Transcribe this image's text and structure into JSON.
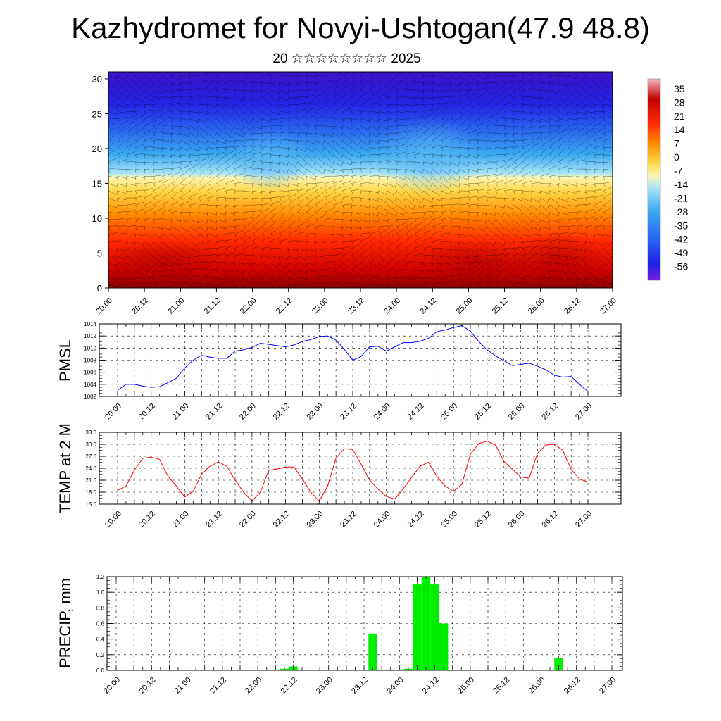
{
  "title": "Kazhydromet for Novyi-Ushtogan(47.9 48.8)",
  "subtitle": "20 ☆☆☆☆☆☆☆☆ 2025",
  "colors": {
    "pmsl_line": "#0000ff",
    "temp_line": "#ff0000",
    "precip_bar": "#00ee00"
  },
  "chart_data": [
    {
      "type": "heatmap",
      "x_ticks": [
        "20.00",
        "20.12",
        "21.00",
        "21.12",
        "22.00",
        "22.12",
        "23.00",
        "23.12",
        "24.00",
        "24.12",
        "25.00",
        "25.12",
        "26.00",
        "26.12",
        "27.00"
      ],
      "y_ticks": [
        "0",
        "5",
        "10",
        "15",
        "20",
        "25",
        "30"
      ],
      "ylim": [
        0,
        31
      ],
      "colorbar": {
        "labels": [
          "35",
          "28",
          "21",
          "14",
          "7",
          "0",
          "-7",
          "-14",
          "-21",
          "-28",
          "-35",
          "-42",
          "-49",
          "-56"
        ],
        "range": [
          -63,
          40
        ]
      },
      "overlay": "wind barbs"
    },
    {
      "type": "line",
      "ylabel": "PMSL",
      "x_ticks": [
        "20.00",
        "20.12",
        "21.00",
        "21.12",
        "22.00",
        "22.12",
        "23.00",
        "23.12",
        "24.00",
        "24.12",
        "25.00",
        "25.12",
        "26.00",
        "26.12",
        "27.00"
      ],
      "y_ticks": [
        "1002",
        "1004",
        "1006",
        "1008",
        "1010",
        "1012",
        "1014"
      ],
      "ylim": [
        1002,
        1014
      ],
      "values": [
        1003.0,
        1004.0,
        1004.0,
        1003.7,
        1003.5,
        1003.6,
        1004.3,
        1005.0,
        1006.7,
        1008.0,
        1008.8,
        1008.5,
        1008.3,
        1008.3,
        1009.5,
        1009.7,
        1010.1,
        1010.8,
        1010.6,
        1010.4,
        1010.2,
        1010.5,
        1011.1,
        1011.4,
        1011.9,
        1012.0,
        1011.3,
        1009.8,
        1008.0,
        1008.6,
        1010.2,
        1010.3,
        1009.5,
        1010.2,
        1010.9,
        1010.9,
        1011.1,
        1011.6,
        1012.7,
        1013.0,
        1013.4,
        1013.7,
        1012.8,
        1011.1,
        1009.7,
        1008.7,
        1007.9,
        1007.1,
        1007.3,
        1007.5,
        1007.0,
        1006.4,
        1005.5,
        1005.2,
        1005.3,
        1004.0,
        1002.8
      ],
      "grid": true
    },
    {
      "type": "line",
      "ylabel": "TEMP at 2 M",
      "x_ticks": [
        "20.00",
        "20.12",
        "21.00",
        "21.12",
        "22.00",
        "22.12",
        "23.00",
        "23.12",
        "24.00",
        "24.12",
        "25.00",
        "25.12",
        "26.00",
        "26.12",
        "27.00"
      ],
      "y_ticks": [
        "15.0",
        "18.0",
        "21.0",
        "24.0",
        "27.0",
        "30.0",
        "33.0"
      ],
      "ylim": [
        15,
        33
      ],
      "values": [
        18.5,
        19.5,
        23.5,
        26.5,
        26.8,
        26.2,
        22.0,
        19.5,
        16.8,
        18.2,
        22.5,
        24.5,
        25.6,
        24.5,
        21.0,
        18.0,
        15.8,
        18.0,
        23.5,
        23.8,
        24.3,
        24.3,
        21.3,
        18.0,
        15.7,
        19.5,
        26.5,
        28.9,
        28.7,
        25.0,
        21.0,
        18.8,
        16.9,
        16.3,
        18.8,
        21.7,
        24.5,
        25.5,
        22.0,
        19.5,
        18.2,
        20.0,
        27.5,
        30.2,
        30.8,
        29.8,
        25.7,
        23.8,
        21.8,
        21.5,
        27.8,
        29.8,
        30.0,
        28.5,
        23.7,
        21.3,
        20.5
      ],
      "grid": true
    },
    {
      "type": "bar",
      "ylabel": "PRECIP, mm",
      "x_ticks": [
        "20.00",
        "20.12",
        "21.00",
        "21.12",
        "22.00",
        "22.12",
        "23.00",
        "23.12",
        "24.00",
        "24.12",
        "25.00",
        "25.12",
        "26.00",
        "26.12",
        "27.00"
      ],
      "y_ticks": [
        "0.0",
        "0.2",
        "0.4",
        "0.6",
        "0.8",
        "1.0",
        "1.2"
      ],
      "ylim": [
        0,
        1.2
      ],
      "values": [
        0,
        0,
        0,
        0,
        0,
        0,
        0,
        0,
        0,
        0,
        0,
        0,
        0,
        0,
        0,
        0,
        0,
        0,
        0.01,
        0.02,
        0.05,
        0,
        0,
        0,
        0,
        0,
        0,
        0,
        0,
        0.47,
        0,
        0.01,
        0.01,
        0.02,
        1.1,
        1.2,
        1.1,
        0.6,
        0,
        0,
        0,
        0,
        0,
        0,
        0,
        0,
        0,
        0,
        0,
        0,
        0.16,
        0,
        0,
        0,
        0,
        0,
        0
      ],
      "grid": true
    }
  ]
}
